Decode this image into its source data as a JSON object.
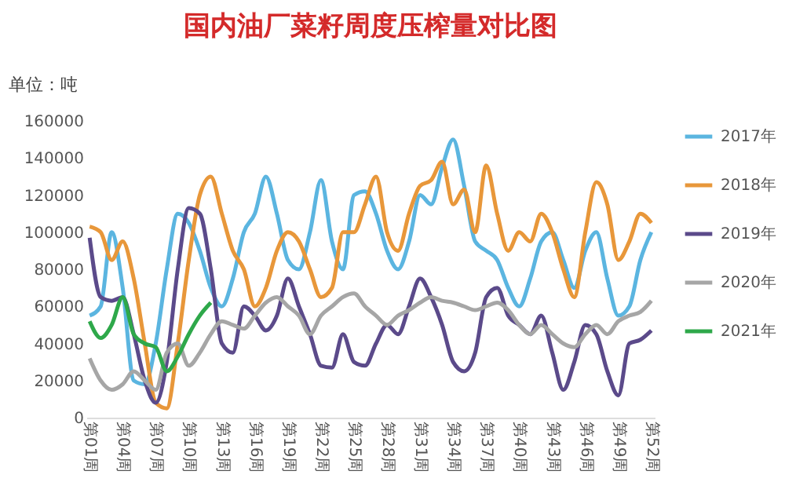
{
  "chart_data": {
    "type": "line",
    "title": "国内油厂菜籽周度压榨量对比图",
    "ylabel": "单位：吨",
    "categories": [
      "第01周",
      null,
      null,
      "第04周",
      null,
      null,
      "第07周",
      null,
      null,
      "第10周",
      null,
      null,
      "第13周",
      null,
      null,
      "第16周",
      null,
      null,
      "第19周",
      null,
      null,
      "第22周",
      null,
      null,
      "第25周",
      null,
      null,
      "第28周",
      null,
      null,
      "第31周",
      null,
      null,
      "第34周",
      null,
      null,
      "第37周",
      null,
      null,
      "第40周",
      null,
      null,
      "第43周",
      null,
      null,
      "第46周",
      null,
      null,
      "第49周",
      null,
      null,
      "第52周"
    ],
    "ylim": [
      0,
      160000
    ],
    "yticks": [
      0,
      20000,
      40000,
      60000,
      80000,
      100000,
      120000,
      140000,
      160000
    ],
    "grid": false,
    "legend": "right",
    "marker": "none",
    "line_style": "solid",
    "series": [
      {
        "name": "2017年",
        "color": "#5bb5e0",
        "values": [
          55000,
          60000,
          100000,
          70000,
          20000,
          18000,
          40000,
          80000,
          110000,
          105000,
          90000,
          70000,
          60000,
          75000,
          100000,
          110000,
          130000,
          110000,
          85000,
          80000,
          100000,
          128000,
          95000,
          80000,
          120000,
          122000,
          110000,
          90000,
          80000,
          95000,
          120000,
          115000,
          135000,
          150000,
          125000,
          95000,
          90000,
          85000,
          70000,
          60000,
          75000,
          95000,
          100000,
          85000,
          70000,
          90000,
          100000,
          75000,
          55000,
          60000,
          85000,
          100000
        ]
      },
      {
        "name": "2018年",
        "color": "#e8973a",
        "values": [
          103000,
          100000,
          85000,
          95000,
          75000,
          40000,
          8000,
          5000,
          40000,
          85000,
          120000,
          130000,
          110000,
          90000,
          80000,
          60000,
          70000,
          90000,
          100000,
          95000,
          80000,
          65000,
          70000,
          100000,
          100000,
          115000,
          130000,
          100000,
          90000,
          110000,
          125000,
          128000,
          138000,
          115000,
          123000,
          100000,
          136000,
          110000,
          90000,
          100000,
          95000,
          110000,
          100000,
          80000,
          65000,
          100000,
          127000,
          115000,
          85000,
          95000,
          110000,
          105000
        ]
      },
      {
        "name": "2019年",
        "color": "#5b4a8a",
        "values": [
          97000,
          65000,
          63000,
          65000,
          45000,
          20000,
          8000,
          30000,
          80000,
          113000,
          110000,
          80000,
          40000,
          35000,
          60000,
          55000,
          47000,
          55000,
          75000,
          60000,
          45000,
          28000,
          27000,
          45000,
          30000,
          28000,
          40000,
          50000,
          45000,
          60000,
          75000,
          65000,
          50000,
          30000,
          25000,
          35000,
          65000,
          70000,
          55000,
          50000,
          45000,
          55000,
          35000,
          15000,
          30000,
          50000,
          45000,
          25000,
          12000,
          40000,
          42000,
          47000
        ]
      },
      {
        "name": "2020年",
        "color": "#a6a6a6",
        "values": [
          32000,
          20000,
          15000,
          18000,
          25000,
          20000,
          15000,
          35000,
          40000,
          28000,
          35000,
          45000,
          52000,
          50000,
          48000,
          55000,
          62000,
          65000,
          60000,
          55000,
          45000,
          55000,
          60000,
          65000,
          67000,
          60000,
          55000,
          50000,
          55000,
          58000,
          62000,
          65000,
          63000,
          62000,
          60000,
          58000,
          60000,
          62000,
          58000,
          50000,
          45000,
          50000,
          45000,
          40000,
          38000,
          45000,
          50000,
          45000,
          52000,
          55000,
          57000,
          63000
        ]
      },
      {
        "name": "2021年",
        "color": "#2ea84a",
        "values": [
          52000,
          43000,
          50000,
          65000,
          45000,
          40000,
          38000,
          25000,
          33000,
          45000,
          55000,
          62000,
          null,
          null,
          null,
          null,
          null,
          null,
          null,
          null,
          null,
          null,
          null,
          null,
          null,
          null,
          null,
          null,
          null,
          null,
          null,
          null,
          null,
          null,
          null,
          null,
          null,
          null,
          null,
          null,
          null,
          null,
          null,
          null,
          null,
          null,
          null,
          null,
          null,
          null,
          null,
          null
        ]
      }
    ]
  }
}
